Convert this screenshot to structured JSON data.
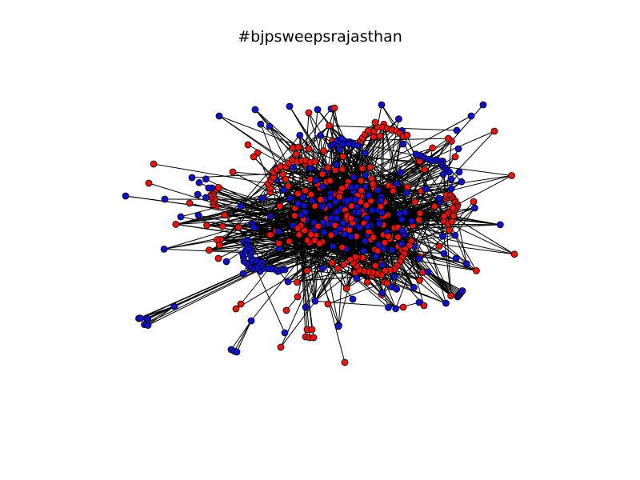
{
  "figure": {
    "title": "#bjpsweepsrajasthan"
  },
  "colors": {
    "node_red": "#e8150d",
    "node_blue": "#1010c8",
    "node_stroke": "#000000",
    "edge": "#000000",
    "background": "#ffffff"
  },
  "graph": {
    "type": "network",
    "node_classes": [
      "red",
      "blue"
    ],
    "approx_node_count": 600,
    "seed": 20131208
  }
}
